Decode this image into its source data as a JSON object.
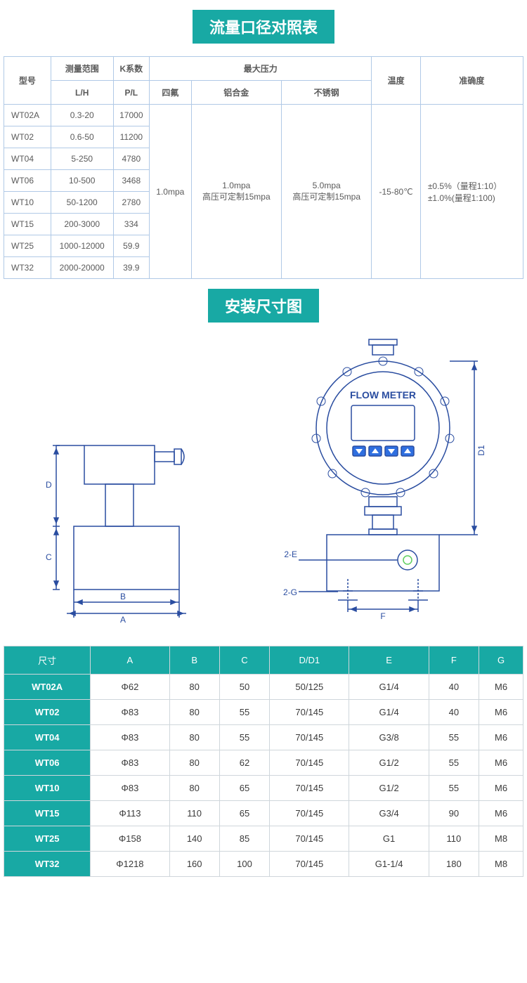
{
  "colors": {
    "teal": "#18a9a4",
    "table1_border": "#b0c9e6",
    "table2_border": "#cfd6db",
    "diagram_stroke": "#2a4da0",
    "text": "#5a5a5a",
    "white": "#ffffff"
  },
  "title1": "流量口径对照表",
  "table1": {
    "headers": {
      "model": "型号",
      "range_top": "测量范围",
      "range_unit": "L/H",
      "k_top": "K系数",
      "k_unit": "P/L",
      "maxp": "最大压力",
      "p_ptfe": "四氟",
      "p_al": "铝合金",
      "p_ss": "不锈钢",
      "temp": "温度",
      "acc": "准确度"
    },
    "rows": [
      {
        "model": "WT02A",
        "range": "0.3-20",
        "k": "17000"
      },
      {
        "model": "WT02",
        "range": "0.6-50",
        "k": "11200"
      },
      {
        "model": "WT04",
        "range": "5-250",
        "k": "4780"
      },
      {
        "model": "WT06",
        "range": "10-500",
        "k": "3468"
      },
      {
        "model": "WT10",
        "range": "50-1200",
        "k": "2780"
      },
      {
        "model": "WT15",
        "range": "200-3000",
        "k": "334"
      },
      {
        "model": "WT25",
        "range": "1000-12000",
        "k": "59.9"
      },
      {
        "model": "WT32",
        "range": "2000-20000",
        "k": "39.9"
      }
    ],
    "merged": {
      "ptfe": "1.0mpa",
      "al_line1": "1.0mpa",
      "al_line2": "高压可定制15mpa",
      "ss_line1": "5.0mpa",
      "ss_line2": "高压可定制15mpa",
      "temp": "-15-80℃",
      "acc_line1": "±0.5%（量程1:10）",
      "acc_line2": "±1.0%(量程1:100)"
    }
  },
  "title2": "安装尺寸图",
  "diagram": {
    "labels": {
      "A": "A",
      "B": "B",
      "C": "C",
      "D": "D",
      "D1": "D1",
      "E2": "2-E",
      "G2": "2-G",
      "F": "F",
      "flow_meter": "FLOW METER"
    },
    "stroke": "#2a4da0",
    "fill": "#ffffff"
  },
  "table2": {
    "header": [
      "尺寸",
      "A",
      "B",
      "C",
      "D/D1",
      "E",
      "F",
      "G"
    ],
    "rows": [
      [
        "WT02A",
        "Φ62",
        "80",
        "50",
        "50/125",
        "G1/4",
        "40",
        "M6"
      ],
      [
        "WT02",
        "Φ83",
        "80",
        "55",
        "70/145",
        "G1/4",
        "40",
        "M6"
      ],
      [
        "WT04",
        "Φ83",
        "80",
        "55",
        "70/145",
        "G3/8",
        "55",
        "M6"
      ],
      [
        "WT06",
        "Φ83",
        "80",
        "62",
        "70/145",
        "G1/2",
        "55",
        "M6"
      ],
      [
        "WT10",
        "Φ83",
        "80",
        "65",
        "70/145",
        "G1/2",
        "55",
        "M6"
      ],
      [
        "WT15",
        "Φ113",
        "110",
        "65",
        "70/145",
        "G3/4",
        "90",
        "M6"
      ],
      [
        "WT25",
        "Φ158",
        "140",
        "85",
        "70/145",
        "G1",
        "110",
        "M8"
      ],
      [
        "WT32",
        "Φ1218",
        "160",
        "100",
        "70/145",
        "G1-1/4",
        "180",
        "M8"
      ]
    ]
  }
}
